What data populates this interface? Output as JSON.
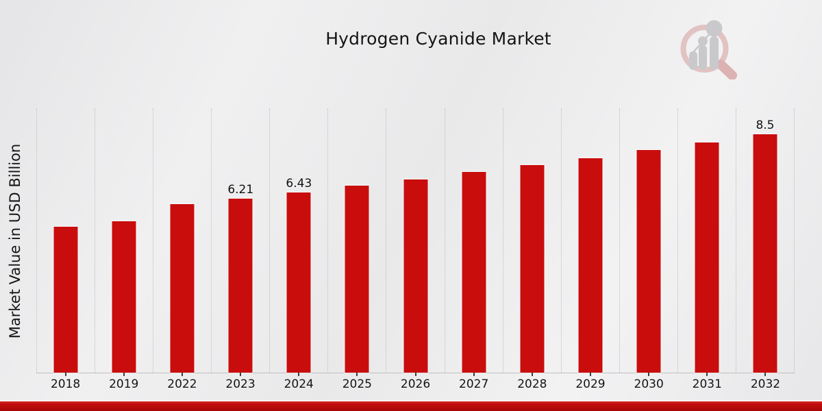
{
  "chart": {
    "title": "Hydrogen Cyanide Market",
    "y_axis_label": "Market Value in USD Billion"
  },
  "branding": {
    "logo_name": "market-research-magnifier-chart-watermark"
  },
  "colors": {
    "bar_red": "#c90d0d",
    "accent_strip_red": "#b50a0a",
    "gridline_gray": "#bdbdbd",
    "text_dark": "#141414"
  },
  "chart_data": {
    "type": "bar",
    "title": "Hydrogen Cyanide Market",
    "xlabel": "",
    "ylabel": "Market Value in USD Billion",
    "categories": [
      "2018",
      "2019",
      "2022",
      "2023",
      "2024",
      "2025",
      "2026",
      "2027",
      "2028",
      "2029",
      "2030",
      "2031",
      "2032"
    ],
    "values": [
      5.2,
      5.41,
      6.0,
      6.21,
      6.43,
      6.66,
      6.9,
      7.15,
      7.4,
      7.65,
      7.93,
      8.21,
      8.5
    ],
    "data_labels": {
      "2023": "6.21",
      "2024": "6.43",
      "2032": "8.5"
    },
    "ylim": [
      0,
      9.43
    ],
    "y_axis_ticks_visible": false,
    "grid": "vertical dotted gridlines between categories",
    "legend": "none",
    "bar_color": "#c90d0d"
  }
}
